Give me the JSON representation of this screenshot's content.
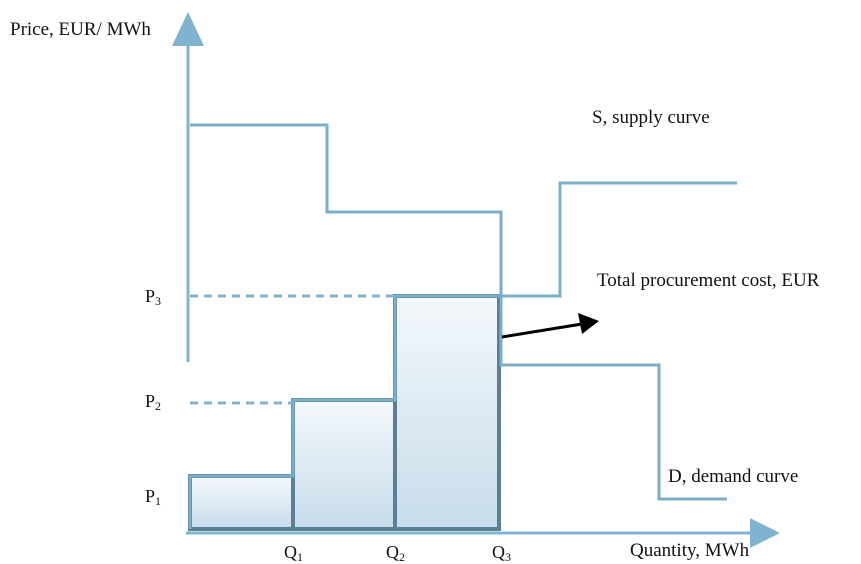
{
  "labels": {
    "y_axis": "Price, EUR/ MWh",
    "x_axis": "Quantity, MWh",
    "supply": "S, supply curve",
    "demand": "D, demand curve",
    "cost": "Total procurement cost, EUR"
  },
  "ticks": {
    "p1": {
      "base": "P",
      "sub": "1"
    },
    "p2": {
      "base": "P",
      "sub": "2"
    },
    "p3": {
      "base": "P",
      "sub": "3"
    },
    "q1": {
      "base": "Q",
      "sub": "1"
    },
    "q2": {
      "base": "Q",
      "sub": "2"
    },
    "q3": {
      "base": "Q",
      "sub": "3"
    }
  },
  "colors": {
    "axis": "#7fb3cf",
    "curve": "#7aaec9",
    "bar_border": "#5b7f96",
    "bar_fill_top": "#f4f8fc",
    "bar_fill_bottom": "#c7dcea",
    "arrow": "#000000"
  }
}
